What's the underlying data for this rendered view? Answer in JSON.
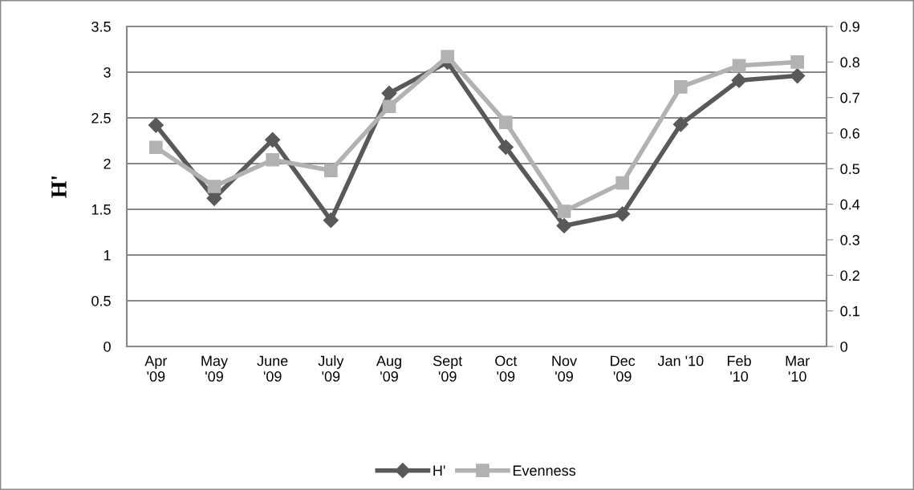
{
  "chart_data": {
    "type": "line",
    "ylabel": "H'",
    "categories": [
      "Apr\n'09",
      "May\n'09",
      "June\n'09",
      "July\n'09",
      "Aug\n'09",
      "Sept\n'09",
      "Oct\n'09",
      "Nov\n'09",
      "Dec\n'09",
      "Jan '10",
      "Feb\n'10",
      "Mar\n'10"
    ],
    "series": [
      {
        "name": "H'",
        "color": "#595959",
        "marker": "diamond",
        "values": [
          2.42,
          1.62,
          2.26,
          1.38,
          2.77,
          3.11,
          2.18,
          1.32,
          1.45,
          2.43,
          2.91,
          2.96
        ]
      },
      {
        "name": "Evenness",
        "color": "#b2b2b2",
        "marker": "square",
        "axis": "y2",
        "values": [
          0.56,
          0.45,
          0.525,
          0.495,
          0.675,
          0.815,
          0.63,
          0.38,
          0.46,
          0.73,
          0.79,
          0.8
        ]
      }
    ],
    "ylim": [
      0,
      3.5
    ],
    "yticks": [
      0,
      0.5,
      1,
      1.5,
      2,
      2.5,
      3,
      3.5
    ],
    "y2lim": [
      0,
      0.9
    ],
    "y2ticks": [
      0,
      0.1,
      0.2,
      0.3,
      0.4,
      0.5,
      0.6,
      0.7,
      0.8,
      0.9
    ],
    "grid": "y",
    "legend": "bottom",
    "line_style": "solid"
  }
}
